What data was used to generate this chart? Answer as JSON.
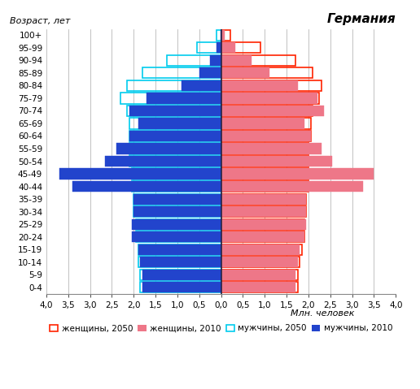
{
  "age_groups": [
    "0-4",
    "5-9",
    "10-14",
    "15-19",
    "20-24",
    "25-29",
    "30-34",
    "35-39",
    "40-44",
    "45-49",
    "50-54",
    "55-59",
    "60-64",
    "65-69",
    "70-74",
    "75-79",
    "80-84",
    "85-89",
    "90-94",
    "95-99",
    "100+"
  ],
  "males_2010": [
    1.8,
    1.8,
    1.85,
    1.9,
    2.05,
    2.05,
    2.0,
    2.0,
    3.4,
    3.7,
    2.65,
    2.4,
    2.1,
    1.9,
    2.1,
    1.7,
    0.9,
    0.5,
    0.25,
    0.1,
    0.02
  ],
  "males_2050": [
    1.85,
    1.85,
    1.9,
    1.9,
    1.95,
    1.95,
    2.0,
    2.0,
    2.05,
    2.05,
    2.1,
    2.1,
    2.1,
    2.1,
    2.15,
    2.3,
    2.15,
    1.8,
    1.25,
    0.55,
    0.1
  ],
  "females_2010": [
    1.7,
    1.7,
    1.75,
    1.8,
    1.9,
    1.95,
    1.95,
    1.95,
    3.25,
    3.5,
    2.55,
    2.3,
    2.05,
    1.9,
    2.35,
    2.2,
    1.75,
    1.1,
    0.7,
    0.32,
    0.09
  ],
  "females_2050": [
    1.75,
    1.75,
    1.8,
    1.85,
    1.9,
    1.9,
    1.95,
    1.95,
    2.0,
    2.0,
    2.0,
    2.0,
    2.05,
    2.05,
    2.1,
    2.25,
    2.3,
    2.1,
    1.7,
    0.9,
    0.22
  ],
  "color_males_2010": "#2244cc",
  "color_males_2050": "#00ccee",
  "color_females_2010": "#ee7788",
  "color_females_2050": "#ff2200",
  "title": "Германия",
  "ylabel": "Возраст, лет",
  "xlabel": "Млн. человек",
  "xlim": 4.0,
  "legend_females_2050": "женщины, 2050",
  "legend_females_2010": "женщины, 2010",
  "legend_males_2050": "мужчины, 2050",
  "legend_males_2010": "мужчины, 2010",
  "bg_color": "#ffffff",
  "grid_color": "#aaaaaa"
}
